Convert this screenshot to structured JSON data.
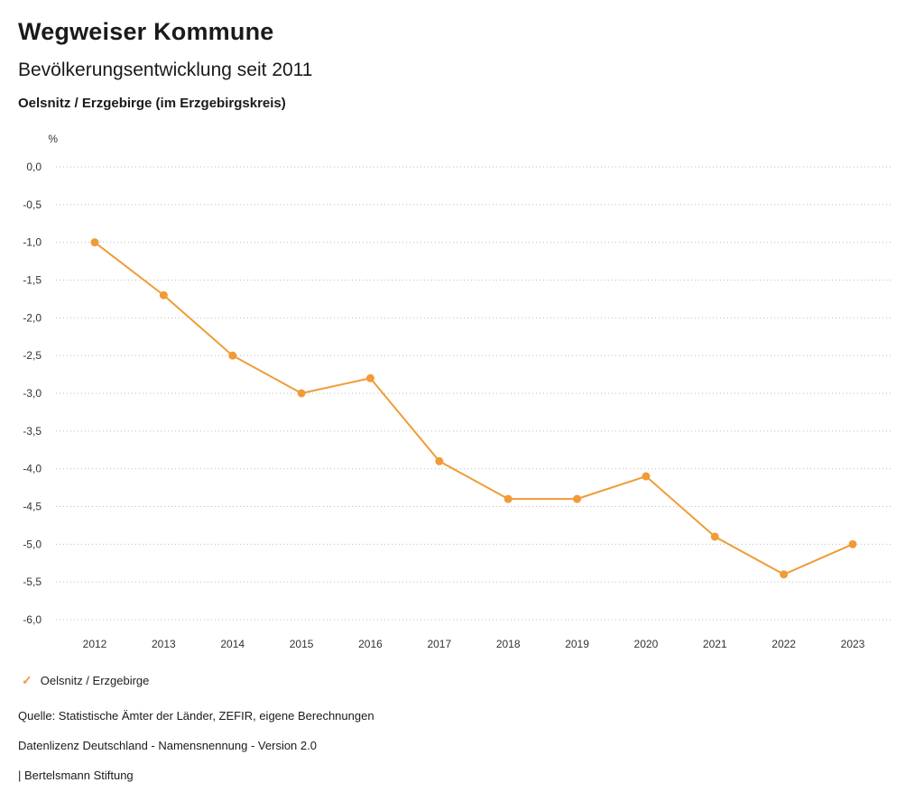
{
  "header": {
    "title": "Wegweiser Kommune",
    "subtitle": "Bevölkerungsentwicklung seit 2011",
    "location": "Oelsnitz / Erzgebirge (im Erzgebirgskreis)"
  },
  "chart_data": {
    "type": "line",
    "title": "Bevölkerungsentwicklung seit 2011",
    "unit_label": "%",
    "x": [
      2012,
      2013,
      2014,
      2015,
      2016,
      2017,
      2018,
      2019,
      2020,
      2021,
      2022,
      2023
    ],
    "series": [
      {
        "name": "Oelsnitz / Erzgebirge",
        "values": [
          -1.0,
          -1.7,
          -2.5,
          -3.0,
          -2.8,
          -3.9,
          -4.4,
          -4.4,
          -4.1,
          -4.9,
          -5.4,
          -5.0
        ],
        "color": "#f09b38"
      }
    ],
    "ylim": [
      -6.0,
      0.0
    ],
    "ytick_step": 0.5,
    "ytick_labels": [
      "0,0",
      "-0,5",
      "-1,0",
      "-1,5",
      "-2,0",
      "-2,5",
      "-3,0",
      "-3,5",
      "-4,0",
      "-4,5",
      "-5,0",
      "-5,5",
      "-6,0"
    ],
    "grid": "dotted-horizontal",
    "grid_color": "#bdbdbd",
    "tick_color": "#333333",
    "legend_position": "bottom-left"
  },
  "legend": {
    "marker": "✓",
    "label": "Oelsnitz / Erzgebirge",
    "color": "#f09b38"
  },
  "footer": {
    "source": "Quelle: Statistische Ämter der Länder, ZEFIR, eigene Berechnungen",
    "license": "Datenlizenz Deutschland - Namensnennung - Version 2.0",
    "attribution": "| Bertelsmann Stiftung"
  }
}
